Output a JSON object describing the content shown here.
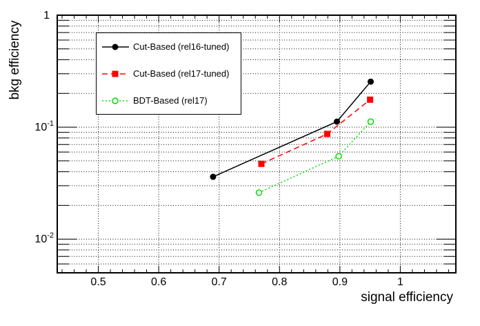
{
  "chart_data": {
    "type": "line",
    "title": "",
    "xlabel": "signal efficiency",
    "ylabel": "bkg efficiency",
    "xscale": "linear",
    "yscale": "log",
    "xlim": [
      0.432,
      1.092
    ],
    "ylim": [
      0.005,
      1.0
    ],
    "grid": true,
    "grid_style": "dotted",
    "x_major_ticks": [
      0.5,
      0.6,
      0.7,
      0.8,
      0.9,
      1.0
    ],
    "x_tick_labels": [
      "0.5",
      "0.6",
      "0.7",
      "0.8",
      "0.9",
      "1"
    ],
    "x_minor_tick_step": 0.02,
    "y_ticks": [
      {
        "value": 1,
        "label": "1",
        "exp": ""
      },
      {
        "value": 0.1,
        "label": "10",
        "exp": "-1"
      },
      {
        "value": 0.01,
        "label": "10",
        "exp": "-2"
      }
    ],
    "legend": {
      "position": "top-left"
    },
    "series": [
      {
        "name": "Cut-Based (rel16-tuned)",
        "color": "#000000",
        "line_style": "solid",
        "marker": "filled-circle",
        "points": [
          [
            0.69,
            0.036
          ],
          [
            0.895,
            0.112
          ],
          [
            0.951,
            0.255
          ]
        ]
      },
      {
        "name": "Cut-Based (rel17-tuned)",
        "color": "#ff0000",
        "line_style": "dashed",
        "marker": "filled-square",
        "points": [
          [
            0.77,
            0.047
          ],
          [
            0.879,
            0.087
          ],
          [
            0.95,
            0.176
          ]
        ]
      },
      {
        "name": "BDT-Based (rel17)",
        "color": "#00dd00",
        "line_style": "dotted",
        "marker": "open-circle",
        "points": [
          [
            0.766,
            0.026
          ],
          [
            0.898,
            0.055
          ],
          [
            0.951,
            0.112
          ]
        ]
      }
    ],
    "colors": {
      "frame": "#000000",
      "grid": "#000000",
      "background": "#ffffff"
    }
  }
}
